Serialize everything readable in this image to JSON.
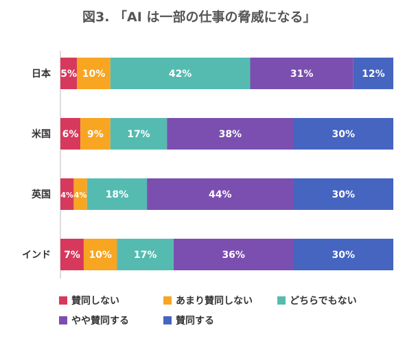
{
  "chart_data": {
    "type": "bar",
    "orientation": "horizontal",
    "stacked": true,
    "title": "図3. 「AI は一部の仕事の脅威になる」",
    "categories": [
      "日本",
      "米国",
      "英国",
      "インド"
    ],
    "series": [
      {
        "name": "賛同しない",
        "color": "#d7395c",
        "values": [
          5,
          6,
          4,
          7
        ],
        "labels": [
          "5%",
          "6%",
          "4%",
          "7%"
        ]
      },
      {
        "name": "あまり賛同しない",
        "color": "#f8a522",
        "values": [
          10,
          9,
          4,
          10
        ],
        "labels": [
          "10%",
          "9%",
          "4%",
          "10%"
        ]
      },
      {
        "name": "どちらでもない",
        "color": "#55bbb1",
        "values": [
          42,
          17,
          18,
          17
        ],
        "labels": [
          "42%",
          "17%",
          "18%",
          "17%"
        ]
      },
      {
        "name": "やや賛同する",
        "color": "#7b4fb0",
        "values": [
          31,
          38,
          44,
          36
        ],
        "labels": [
          "31%",
          "38%",
          "44%",
          "36%"
        ]
      },
      {
        "name": "賛同する",
        "color": "#4565c0",
        "values": [
          12,
          30,
          30,
          30
        ],
        "labels": [
          "12%",
          "30%",
          "30%",
          "30%"
        ]
      }
    ],
    "legend_position": "bottom",
    "grid": false
  }
}
